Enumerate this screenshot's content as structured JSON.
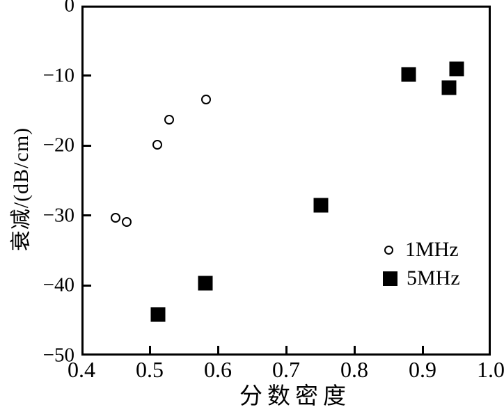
{
  "chart_data": {
    "type": "scatter",
    "title": "",
    "xlabel": "分数密度",
    "ylabel": "衰减/(dB/cm)",
    "xlim": [
      0.4,
      1.0
    ],
    "ylim": [
      -50,
      0
    ],
    "x_ticks": [
      0.4,
      0.5,
      0.6,
      0.7,
      0.8,
      0.9,
      1.0
    ],
    "x_tick_labels": [
      "0.4",
      "0.5",
      "0.6",
      "0.7",
      "0.8",
      "0.9",
      "1.0"
    ],
    "y_ticks": [
      0,
      -10,
      -20,
      -30,
      -40,
      -50
    ],
    "y_tick_labels": [
      "0",
      "−10",
      "−20",
      "−30",
      "−40",
      "−50"
    ],
    "grid": false,
    "legend_position": "inside lower right",
    "series": [
      {
        "name": "1MHz",
        "marker": "open-circle",
        "points": [
          [
            0.45,
            -30.3
          ],
          [
            0.466,
            -30.9
          ],
          [
            0.511,
            -19.9
          ],
          [
            0.529,
            -16.3
          ],
          [
            0.583,
            -13.4
          ]
        ]
      },
      {
        "name": "5MHz",
        "marker": "filled-square",
        "points": [
          [
            0.512,
            -44.1
          ],
          [
            0.582,
            -39.7
          ],
          [
            0.751,
            -28.5
          ],
          [
            0.88,
            -9.8
          ],
          [
            0.939,
            -11.7
          ],
          [
            0.95,
            -9.0
          ]
        ]
      }
    ]
  },
  "colors": {
    "foreground": "#000000",
    "background": "#ffffff"
  }
}
